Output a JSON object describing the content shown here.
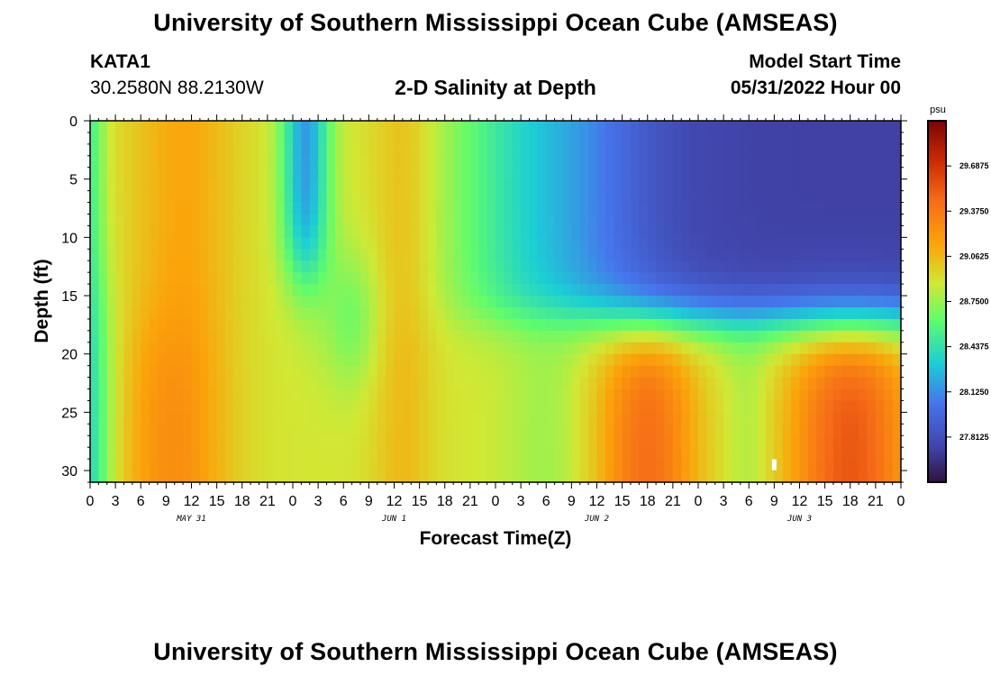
{
  "header": {
    "title": "University of Southern Mississippi Ocean Cube (AMSEAS)",
    "station_id": "KATA1",
    "station_coords": "30.2580N  88.2130W",
    "subtitle": "2-D Salinity at Depth",
    "model_start_label": "Model Start Time",
    "model_start_value": "05/31/2022 Hour 00"
  },
  "footer": {
    "title": "University of Southern Mississippi Ocean Cube (AMSEAS)"
  },
  "chart_data": {
    "type": "heatmap",
    "title": "2-D Salinity at Depth",
    "xlabel": "Forecast Time(Z)",
    "ylabel": "Depth (ft)",
    "units": "psu",
    "xlim": [
      0,
      96
    ],
    "ylim": [
      31,
      0
    ],
    "x_tick_labels": [
      "0",
      "3",
      "6",
      "9",
      "12",
      "15",
      "18",
      "21",
      "0",
      "3",
      "6",
      "9",
      "12",
      "15",
      "18",
      "21",
      "0",
      "3",
      "6",
      "9",
      "12",
      "15",
      "18",
      "21",
      "0",
      "3",
      "6",
      "9",
      "12",
      "15",
      "18",
      "21",
      "0"
    ],
    "date_labels": [
      {
        "label": "MAY 31",
        "hour": 12
      },
      {
        "label": "JUN 1",
        "hour": 36
      },
      {
        "label": "JUN 2",
        "hour": 60
      },
      {
        "label": "JUN 3",
        "hour": 84
      }
    ],
    "y_ticks": [
      0,
      5,
      10,
      15,
      20,
      25,
      30
    ],
    "colorbar": {
      "unit_label": "psu",
      "min": 27.5,
      "max": 30.0,
      "tick_values": [
        29.6875,
        29.375,
        29.0625,
        28.75,
        28.4375,
        28.125,
        27.8125
      ],
      "tick_labels": [
        "29.6875",
        "29.3750",
        "29.0625",
        "28.7500",
        "28.4375",
        "28.1250",
        "27.8125"
      ]
    },
    "marker": {
      "hour": 81,
      "depth": 29.5
    }
  }
}
